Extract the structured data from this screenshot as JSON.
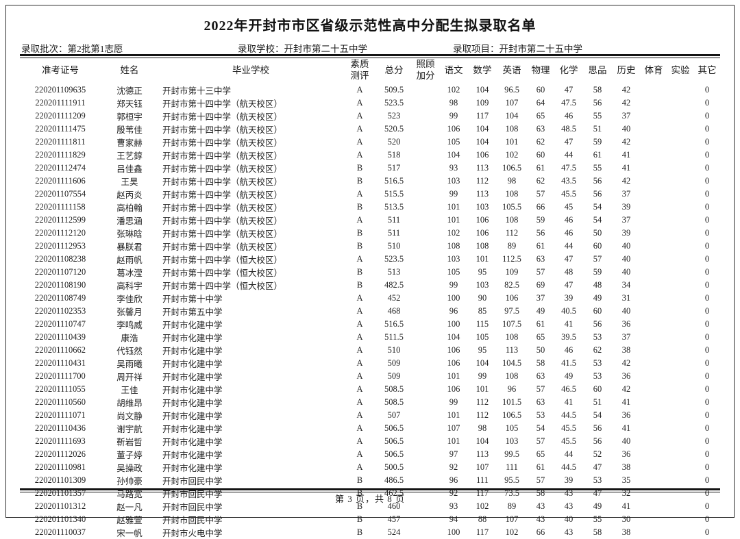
{
  "title": "2022年开封市市区省级示范性高中分配生拟录取名单",
  "meta": {
    "batch_label": "录取批次：",
    "batch_value": "第2批第1志愿",
    "school_label": "录取学校：",
    "school_value": "开封市第二十五中学",
    "project_label": "录取项目：",
    "project_value": "开封市第二十五中学"
  },
  "table": {
    "columns": [
      "准考证号",
      "姓名",
      "毕业学校",
      "素质\n测评",
      "总分",
      "照顾\n加分",
      "语文",
      "数学",
      "英语",
      "物理",
      "化学",
      "思品",
      "历史",
      "体育",
      "实验",
      "其它"
    ],
    "rows": [
      [
        "220201109635",
        "沈德正",
        "开封市第十三中学",
        "A",
        "509.5",
        "",
        "102",
        "104",
        "96.5",
        "60",
        "47",
        "58",
        "42",
        "",
        "",
        "0"
      ],
      [
        "220201111911",
        "郑天钰",
        "开封市第十四中学（航天校区）",
        "A",
        "523.5",
        "",
        "98",
        "109",
        "107",
        "64",
        "47.5",
        "56",
        "42",
        "",
        "",
        "0"
      ],
      [
        "220201111209",
        "郭桓宇",
        "开封市第十四中学（航天校区）",
        "A",
        "523",
        "",
        "99",
        "117",
        "104",
        "65",
        "46",
        "55",
        "37",
        "",
        "",
        "0"
      ],
      [
        "220201111475",
        "殷苇佳",
        "开封市第十四中学（航天校区）",
        "A",
        "520.5",
        "",
        "106",
        "104",
        "108",
        "63",
        "48.5",
        "51",
        "40",
        "",
        "",
        "0"
      ],
      [
        "220201111811",
        "曹家赫",
        "开封市第十四中学（航天校区）",
        "A",
        "520",
        "",
        "105",
        "104",
        "101",
        "62",
        "47",
        "59",
        "42",
        "",
        "",
        "0"
      ],
      [
        "220201111829",
        "王艺錞",
        "开封市第十四中学（航天校区）",
        "A",
        "518",
        "",
        "104",
        "106",
        "102",
        "60",
        "44",
        "61",
        "41",
        "",
        "",
        "0"
      ],
      [
        "220201112474",
        "吕佳鑫",
        "开封市第十四中学（航天校区）",
        "B",
        "517",
        "",
        "93",
        "113",
        "106.5",
        "61",
        "47.5",
        "55",
        "41",
        "",
        "",
        "0"
      ],
      [
        "220201111606",
        "王昊",
        "开封市第十四中学（航天校区）",
        "B",
        "516.5",
        "",
        "103",
        "112",
        "98",
        "62",
        "43.5",
        "56",
        "42",
        "",
        "",
        "0"
      ],
      [
        "220201107554",
        "赵丙炎",
        "开封市第十四中学（航天校区）",
        "A",
        "515.5",
        "",
        "99",
        "113",
        "108",
        "57",
        "45.5",
        "56",
        "37",
        "",
        "",
        "0"
      ],
      [
        "220201111158",
        "高柏翰",
        "开封市第十四中学（航天校区）",
        "B",
        "513.5",
        "",
        "101",
        "103",
        "105.5",
        "66",
        "45",
        "54",
        "39",
        "",
        "",
        "0"
      ],
      [
        "220201112599",
        "潘思涵",
        "开封市第十四中学（航天校区）",
        "A",
        "511",
        "",
        "101",
        "106",
        "108",
        "59",
        "46",
        "54",
        "37",
        "",
        "",
        "0"
      ],
      [
        "220201112120",
        "张琳晗",
        "开封市第十四中学（航天校区）",
        "B",
        "511",
        "",
        "102",
        "106",
        "112",
        "56",
        "46",
        "50",
        "39",
        "",
        "",
        "0"
      ],
      [
        "220201112953",
        "暴朕君",
        "开封市第十四中学（航天校区）",
        "B",
        "510",
        "",
        "108",
        "108",
        "89",
        "61",
        "44",
        "60",
        "40",
        "",
        "",
        "0"
      ],
      [
        "220201108238",
        "赵雨帆",
        "开封市第十四中学（恒大校区）",
        "A",
        "523.5",
        "",
        "103",
        "101",
        "112.5",
        "63",
        "47",
        "57",
        "40",
        "",
        "",
        "0"
      ],
      [
        "220201107120",
        "葛冰滢",
        "开封市第十四中学（恒大校区）",
        "B",
        "513",
        "",
        "105",
        "95",
        "109",
        "57",
        "48",
        "59",
        "40",
        "",
        "",
        "0"
      ],
      [
        "220201108190",
        "高科宇",
        "开封市第十四中学（恒大校区）",
        "B",
        "482.5",
        "",
        "99",
        "103",
        "82.5",
        "69",
        "47",
        "48",
        "34",
        "",
        "",
        "0"
      ],
      [
        "220201108749",
        "李佳欣",
        "开封市第十中学",
        "A",
        "452",
        "",
        "100",
        "90",
        "106",
        "37",
        "39",
        "49",
        "31",
        "",
        "",
        "0"
      ],
      [
        "220201102353",
        "张馨月",
        "开封市第五中学",
        "A",
        "468",
        "",
        "96",
        "85",
        "97.5",
        "49",
        "40.5",
        "60",
        "40",
        "",
        "",
        "0"
      ],
      [
        "220201110747",
        "李鸣威",
        "开封市化建中学",
        "A",
        "516.5",
        "",
        "100",
        "115",
        "107.5",
        "61",
        "41",
        "56",
        "36",
        "",
        "",
        "0"
      ],
      [
        "220201110439",
        "康浩",
        "开封市化建中学",
        "A",
        "511.5",
        "",
        "104",
        "105",
        "108",
        "65",
        "39.5",
        "53",
        "37",
        "",
        "",
        "0"
      ],
      [
        "220201110662",
        "代钰然",
        "开封市化建中学",
        "A",
        "510",
        "",
        "106",
        "95",
        "113",
        "50",
        "46",
        "62",
        "38",
        "",
        "",
        "0"
      ],
      [
        "220201110431",
        "吴雨曦",
        "开封市化建中学",
        "A",
        "509",
        "",
        "106",
        "104",
        "104.5",
        "58",
        "41.5",
        "53",
        "42",
        "",
        "",
        "0"
      ],
      [
        "220201111700",
        "周开祥",
        "开封市化建中学",
        "A",
        "509",
        "",
        "101",
        "99",
        "108",
        "63",
        "49",
        "53",
        "36",
        "",
        "",
        "0"
      ],
      [
        "220201111055",
        "王佳",
        "开封市化建中学",
        "A",
        "508.5",
        "",
        "106",
        "101",
        "96",
        "57",
        "46.5",
        "60",
        "42",
        "",
        "",
        "0"
      ],
      [
        "220201110560",
        "胡维昂",
        "开封市化建中学",
        "A",
        "508.5",
        "",
        "99",
        "112",
        "101.5",
        "63",
        "41",
        "51",
        "41",
        "",
        "",
        "0"
      ],
      [
        "220201111071",
        "尚文静",
        "开封市化建中学",
        "A",
        "507",
        "",
        "101",
        "112",
        "106.5",
        "53",
        "44.5",
        "54",
        "36",
        "",
        "",
        "0"
      ],
      [
        "220201110436",
        "谢宇航",
        "开封市化建中学",
        "A",
        "506.5",
        "",
        "107",
        "98",
        "105",
        "54",
        "45.5",
        "56",
        "41",
        "",
        "",
        "0"
      ],
      [
        "220201111693",
        "靳岩哲",
        "开封市化建中学",
        "A",
        "506.5",
        "",
        "101",
        "104",
        "103",
        "57",
        "45.5",
        "56",
        "40",
        "",
        "",
        "0"
      ],
      [
        "220201112026",
        "董子婷",
        "开封市化建中学",
        "A",
        "506.5",
        "",
        "97",
        "113",
        "99.5",
        "65",
        "44",
        "52",
        "36",
        "",
        "",
        "0"
      ],
      [
        "220201110981",
        "吴操政",
        "开封市化建中学",
        "A",
        "500.5",
        "",
        "92",
        "107",
        "111",
        "61",
        "44.5",
        "47",
        "38",
        "",
        "",
        "0"
      ],
      [
        "220201101309",
        "孙帅豪",
        "开封市回民中学",
        "B",
        "486.5",
        "",
        "96",
        "111",
        "95.5",
        "57",
        "39",
        "53",
        "35",
        "",
        "",
        "0"
      ],
      [
        "220201101357",
        "马路宽",
        "开封市回民中学",
        "B",
        "462.5",
        "",
        "92",
        "117",
        "73.5",
        "58",
        "43",
        "47",
        "32",
        "",
        "",
        "0"
      ],
      [
        "220201101312",
        "赵一凡",
        "开封市回民中学",
        "B",
        "460",
        "",
        "93",
        "102",
        "89",
        "43",
        "43",
        "49",
        "41",
        "",
        "",
        "0"
      ],
      [
        "220201101340",
        "赵雅萱",
        "开封市回民中学",
        "B",
        "457",
        "",
        "94",
        "88",
        "107",
        "43",
        "40",
        "55",
        "30",
        "",
        "",
        "0"
      ],
      [
        "220201110037",
        "宋一帆",
        "开封市火电中学",
        "B",
        "524",
        "",
        "100",
        "117",
        "102",
        "66",
        "43",
        "58",
        "38",
        "",
        "",
        "0"
      ]
    ]
  },
  "footer": "第 3 页，共 8 页"
}
